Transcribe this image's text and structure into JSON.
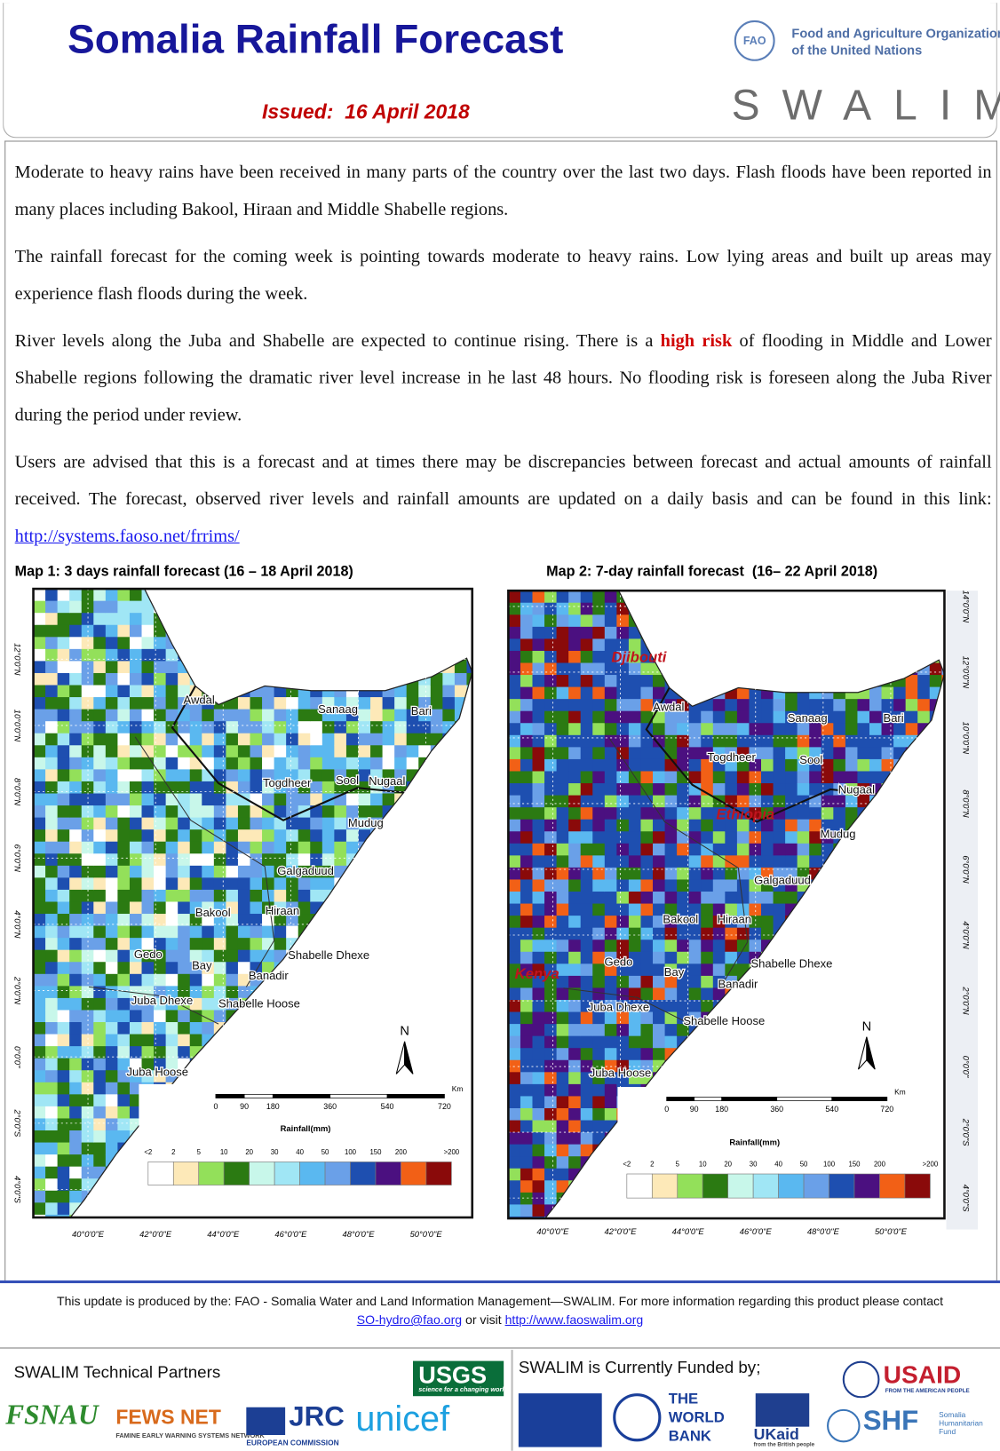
{
  "header": {
    "title": "Somalia Rainfall Forecast",
    "issued": "Issued:  16 April 2018",
    "fao_logo": "FAO",
    "fao_name": [
      "Food and Agriculture Organization",
      "of the United Nations"
    ],
    "swalim": "SWALIM"
  },
  "paragraphs": [
    [
      "Moderate to heavy rains have been received in many parts of the country over the last two days. Flash floods have been reported in many places including Bakool, Hiraan  and Middle Shabelle regions."
    ],
    [
      "The rainfall forecast for the coming week is pointing towards moderate to heavy rains. Low lying areas and built up areas may experience flash floods during the week."
    ],
    [
      "River levels along the Juba and Shabelle are  expected to continue rising.  There is a ",
      "high risk",
      " of flooding in Middle and Lower Shabelle regions following the dramatic  river level increase in he last 48 hours. No flooding risk is foreseen along the Juba River during the period under review."
    ],
    [
      "Users are  advised that this is a forecast  and at times there may be discrepancies between forecast and actual amounts of rainfall received. The forecast, observed river levels and rainfall amounts are updated on a daily basis and can be found in this link: ",
      "http://systems.faoso.net/frrims/"
    ]
  ],
  "maps": [
    {
      "title": "Map 1: 3 days rainfall forecast (16 – 18 April 2018)",
      "regions": [
        "Awdal",
        "Sanaag",
        "Bari",
        "Togdheer",
        "Sool",
        "Nugaal",
        "Mudug",
        "Galgaduud",
        "Bakool",
        "Hiraan",
        "Gedo",
        "Bay",
        "Shabelle Dhexe",
        "Banadir",
        "Juba Dhexe",
        "Shabelle Hoose",
        "Juba Hoose"
      ],
      "lat_labels": [
        "12°0'0\"N",
        "10°0'0\"N",
        "8°0'0\"N",
        "6°0'0\"N",
        "4°0'0\"N",
        "2°0'0\"N",
        "0°0'0\"",
        "2°0'0\"S",
        "4°0'0\"S"
      ],
      "lon_labels": [
        "40°0'0\"E",
        "42°0'0\"E",
        "44°0'0\"E",
        "46°0'0\"E",
        "48°0'0\"E",
        "50°0'0\"E"
      ],
      "north": "N",
      "scale_unit": "Km",
      "scale_ticks": [
        0,
        90,
        180,
        360,
        540,
        720
      ],
      "legend_title": "Rainfall(mm)",
      "legend_labels": [
        "<2",
        "2",
        "5",
        "10",
        "20",
        "30",
        "40",
        "50",
        "100",
        "150",
        "200",
        ">200"
      ]
    },
    {
      "title": "Map 2: 7-day rainfall forecast  (16– 22 April 2018)",
      "countries": [
        "Djibouti",
        "Ethiopia",
        "Kenya"
      ],
      "regions": [
        "Awdal",
        "Sanaag",
        "Bari",
        "Togdheer",
        "Sool",
        "Nugaal",
        "Mudug",
        "Galgaduud",
        "Bakool",
        "Hiraan",
        "Gedo",
        "Bay",
        "Shabelle Dhexe",
        "Banadir",
        "Juba Dhexe",
        "Shabelle Hoose",
        "Juba Hoose"
      ],
      "lat_labels": [
        "14°0'0\"N",
        "12°0'0\"N",
        "10°0'0\"N",
        "8°0'0\"N",
        "6°0'0\"N",
        "4°0'0\"N",
        "2°0'0\"N",
        "0°0'0\"",
        "2°0'0\"S",
        "4°0'0\"S"
      ],
      "lon_labels": [
        "40°0'0\"E",
        "42°0'0\"E",
        "44°0'0\"E",
        "46°0'0\"E",
        "48°0'0\"E",
        "50°0'0\"E"
      ],
      "north": "N",
      "scale_unit": "Km",
      "scale_ticks": [
        0,
        90,
        180,
        360,
        540,
        720
      ],
      "legend_title": "Rainfall(mm)",
      "legend_labels": [
        "<2",
        "2",
        "5",
        "10",
        "20",
        "30",
        "40",
        "50",
        "100",
        "150",
        "200",
        ">200"
      ]
    }
  ],
  "legend_colors": [
    "#ffffff",
    "#fde9b8",
    "#93e05a",
    "#2b7a12",
    "#c8f7ea",
    "#a0e6f5",
    "#5ab8f0",
    "#6aa0e8",
    "#1e4fb0",
    "#4b1080",
    "#f26016",
    "#8a0a0a"
  ],
  "footer": {
    "text": "This update is produced by the: FAO - Somalia Water and Land Information Management—SWALIM. For more information regarding this product please contact",
    "email": "SO-hydro@fao.org",
    "or_visit": " or visit ",
    "url": "http://www.faoswalim.org"
  },
  "partners": {
    "technical_title": "SWALIM Technical Partners",
    "funded_title": "SWALIM is Currently Funded by;",
    "fsnau": "FSNAU",
    "fews": "FEWS NET",
    "fews_sub": "FAMINE EARLY WARNING SYSTEMS NETWORK",
    "jrc": "JRC",
    "jrc_sub": "EUROPEAN COMMISSION",
    "usgs": "USGS",
    "usgs_sub": "science for a changing world",
    "unicef": "unicef",
    "worldbank": "THE WORLD BANK",
    "ukaid": "UKaid",
    "ukaid_sub": "from the British people",
    "usaid": "USAID",
    "usaid_sub": "FROM THE AMERICAN PEOPLE",
    "shf": "SHF",
    "shf_sub": "Somalia Humanitarian Fund"
  }
}
